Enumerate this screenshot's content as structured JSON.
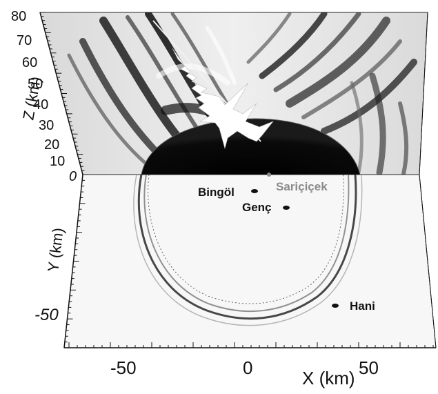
{
  "z_axis": {
    "title": "Z (km)",
    "ticks": [
      "80",
      "70",
      "60",
      "50",
      "40",
      "30",
      "20",
      "10",
      "0"
    ]
  },
  "y_axis": {
    "title": "Y (km)",
    "ticks": [
      "-50"
    ]
  },
  "x_axis": {
    "title": "X (km)",
    "ticks": [
      "-50",
      "0",
      "50"
    ]
  },
  "locations": [
    {
      "name": "Bingöl",
      "style": "black"
    },
    {
      "name": "Sariçiçek",
      "style": "gray"
    },
    {
      "name": "Genç",
      "style": "black"
    },
    {
      "name": "Hani",
      "style": "black"
    }
  ]
}
